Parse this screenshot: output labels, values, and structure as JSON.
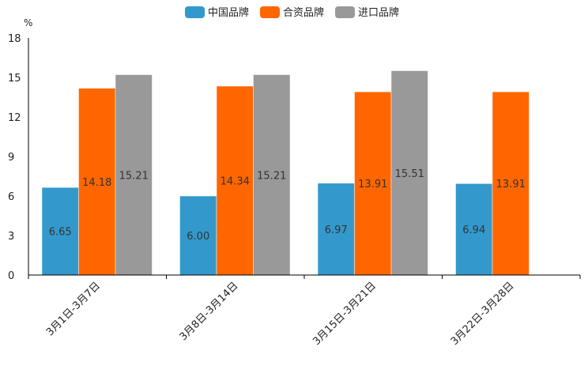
{
  "chart_data": {
    "type": "bar",
    "title": "",
    "xlabel": "",
    "ylabel": "%",
    "ylim": [
      0,
      18
    ],
    "yticks": [
      0,
      3,
      6,
      9,
      12,
      15,
      18
    ],
    "grid": false,
    "legend_position": "top-center",
    "categories": [
      "3月1日-3月7日",
      "3月8日-3月14日",
      "3月15日-3月21日",
      "3月22日-3月28日"
    ],
    "series": [
      {
        "name": "中国品牌",
        "color": "#3399CC",
        "values": [
          6.65,
          6.0,
          6.97,
          6.94
        ],
        "labels": [
          "6.65",
          "6.00",
          "6.97",
          "6.94"
        ]
      },
      {
        "name": "合资品牌",
        "color": "#FF6600",
        "values": [
          14.18,
          14.34,
          13.91,
          13.91
        ],
        "labels": [
          "14.18",
          "14.34",
          "13.91",
          "13.91"
        ]
      },
      {
        "name": "进口品牌",
        "color": "#999999",
        "values": [
          15.21,
          15.21,
          15.51,
          null
        ],
        "labels": [
          "15.21",
          "15.21",
          "15.51",
          ""
        ]
      }
    ]
  }
}
